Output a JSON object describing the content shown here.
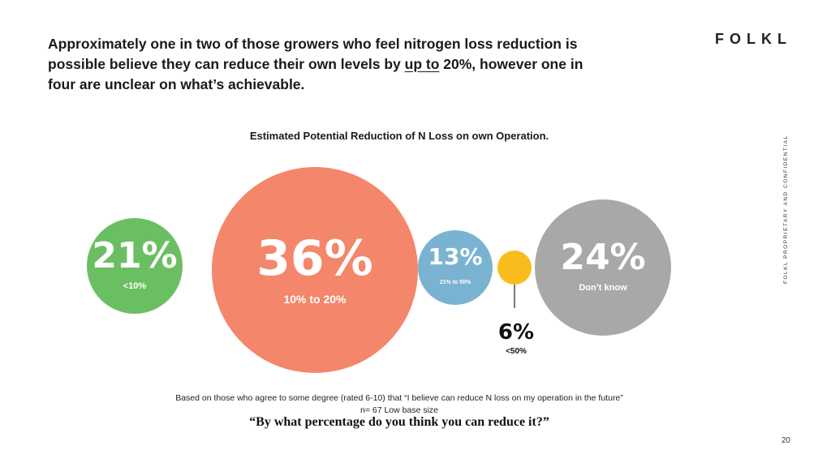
{
  "header": {
    "headline_part1": "Approximately one in two of those growers who feel nitrogen loss reduction is possible believe they can reduce their own levels by ",
    "headline_underlined": "up to",
    "headline_part2": " 20%, however one in four are unclear on what’s achievable.",
    "logo": "FOLKL"
  },
  "sidebar": {
    "text": "FOLKL PROPRIETARY AND CONFIDENTIAL"
  },
  "chart_data": {
    "type": "bubble",
    "title": "Estimated Potential Reduction of N Loss on own Operation.",
    "categories": [
      "<10%",
      "10% to 20%",
      "21% to 50%",
      "<50%",
      "Don’t know"
    ],
    "values": [
      21,
      36,
      13,
      6,
      24
    ],
    "value_labels": [
      "21%",
      "36%",
      "13%",
      "6%",
      "24%"
    ],
    "unit": "%",
    "colors": [
      "#6bbf63",
      "#f4866b",
      "#7ab3d1",
      "#f8bd1c",
      "#a8a8a8"
    ]
  },
  "footer": {
    "base_note": "Based on those who agree to some degree (rated 6-10) that “I believe can reduce N loss on my operation in the future”",
    "sample_note": "n= 67 Low base size",
    "question": "“By what percentage do you think you can reduce it?”",
    "page_number": "20"
  }
}
